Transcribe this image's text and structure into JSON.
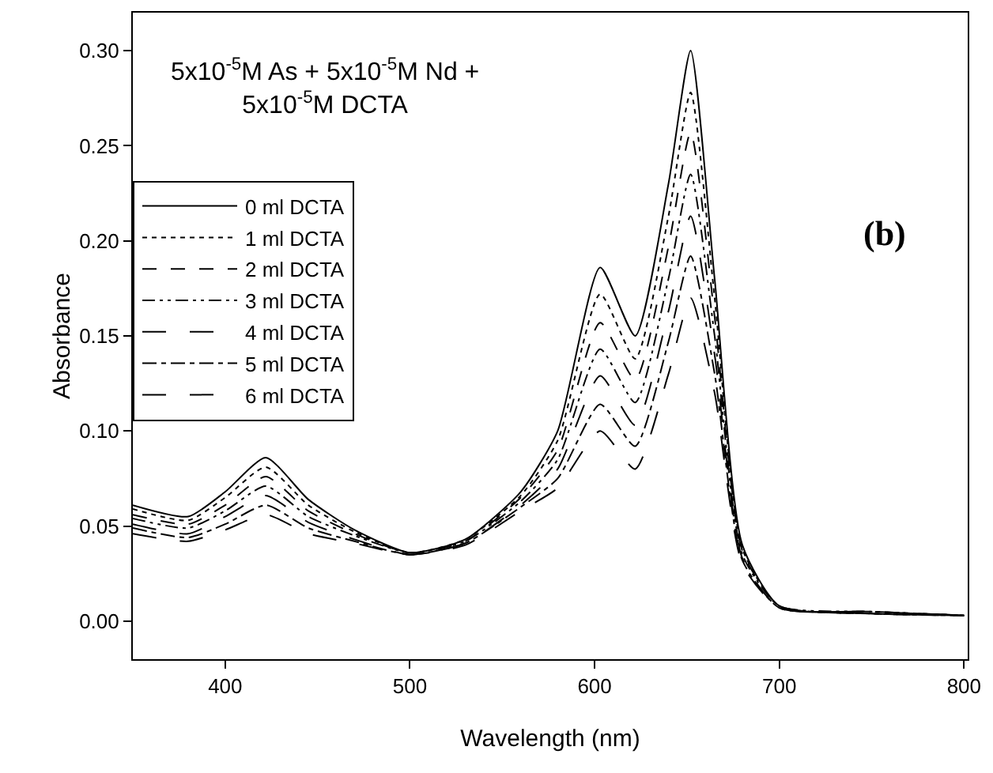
{
  "chart_data": {
    "type": "line",
    "title": "5x10$^{-5}$M As + 5x10$^{-5}$M Nd +\n5x10$^{-5}$M DCTA",
    "xlabel": "Wavelength (nm)",
    "ylabel": "Absorbance",
    "annotations": [
      "(b)"
    ],
    "x": [
      350,
      380,
      400,
      422,
      445,
      470,
      500,
      530,
      560,
      580,
      603,
      622,
      640,
      652,
      665,
      680,
      700,
      750,
      800
    ],
    "series": [
      {
        "name": "0 ml DCTA",
        "color": "#000000",
        "line_style": "solid",
        "values": [
          0.061,
          0.055,
          0.068,
          0.086,
          0.064,
          0.048,
          0.036,
          0.043,
          0.068,
          0.1,
          0.186,
          0.15,
          0.23,
          0.3,
          0.18,
          0.04,
          0.008,
          0.004,
          0.003
        ]
      },
      {
        "name": "1 ml DCTA",
        "color": "#000000",
        "line_style": "dotted",
        "values": [
          0.059,
          0.053,
          0.065,
          0.081,
          0.061,
          0.047,
          0.036,
          0.043,
          0.066,
          0.095,
          0.172,
          0.138,
          0.213,
          0.278,
          0.17,
          0.038,
          0.008,
          0.004,
          0.003
        ]
      },
      {
        "name": "2 ml DCTA",
        "color": "#000000",
        "line_style": "dashed",
        "values": [
          0.056,
          0.051,
          0.061,
          0.076,
          0.058,
          0.046,
          0.036,
          0.042,
          0.065,
          0.09,
          0.157,
          0.127,
          0.197,
          0.257,
          0.16,
          0.037,
          0.008,
          0.004,
          0.003
        ]
      },
      {
        "name": "3 ml DCTA",
        "color": "#000000",
        "line_style": "dashdotdot",
        "values": [
          0.054,
          0.049,
          0.058,
          0.071,
          0.055,
          0.045,
          0.036,
          0.042,
          0.063,
          0.085,
          0.143,
          0.115,
          0.18,
          0.235,
          0.15,
          0.035,
          0.008,
          0.005,
          0.003
        ]
      },
      {
        "name": "4 ml DCTA",
        "color": "#000000",
        "line_style": "longdash",
        "values": [
          0.051,
          0.046,
          0.055,
          0.066,
          0.052,
          0.043,
          0.035,
          0.041,
          0.061,
          0.08,
          0.129,
          0.103,
          0.163,
          0.213,
          0.14,
          0.033,
          0.007,
          0.005,
          0.003
        ]
      },
      {
        "name": "5 ml DCTA",
        "color": "#000000",
        "line_style": "dashdot",
        "values": [
          0.049,
          0.044,
          0.051,
          0.061,
          0.049,
          0.042,
          0.035,
          0.041,
          0.06,
          0.075,
          0.114,
          0.092,
          0.147,
          0.192,
          0.13,
          0.032,
          0.007,
          0.005,
          0.003
        ]
      },
      {
        "name": "6 ml DCTA",
        "color": "#000000",
        "line_style": "longdash",
        "values": [
          0.046,
          0.042,
          0.048,
          0.056,
          0.046,
          0.041,
          0.035,
          0.04,
          0.058,
          0.07,
          0.1,
          0.08,
          0.13,
          0.17,
          0.12,
          0.03,
          0.007,
          0.005,
          0.003
        ]
      }
    ],
    "xlim": [
      350,
      802
    ],
    "xticks": [
      400,
      500,
      600,
      700,
      800
    ],
    "ylim": [
      -0.02,
      0.32
    ],
    "yticks": [
      {
        "value": 0,
        "label": "0.00"
      },
      {
        "value": 0.05,
        "label": "0.05"
      },
      {
        "value": 0.1,
        "label": "0.10"
      },
      {
        "value": 0.15,
        "label": "0.15"
      },
      {
        "value": 0.2,
        "label": "0.20"
      },
      {
        "value": 0.25,
        "label": "0.25"
      },
      {
        "value": 0.3,
        "label": "0.30"
      }
    ],
    "grid": false,
    "legend": "top left",
    "marker": "none"
  }
}
